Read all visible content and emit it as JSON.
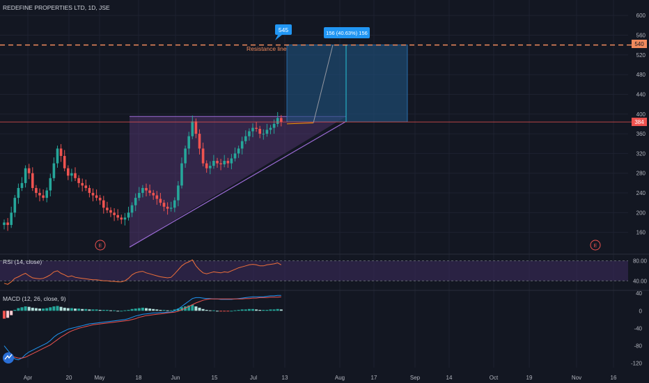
{
  "header": {
    "symbol_title": "REDEFINE PROPERTIES LTD, 1D, JSE"
  },
  "colors": {
    "background": "#131722",
    "grid": "#1e2230",
    "up": "#26a69a",
    "down": "#ef5350",
    "axis_text": "#b2b5be",
    "resistance": "#f08a5d",
    "price_line": "#ef5350",
    "triangle_fill": "#5a3a7a",
    "triangle_edge": "#9c6bd6",
    "target_fill": "#1f4f7a",
    "target_edge": "#2d7fc7",
    "callout": "#2196f3",
    "rsi_line": "#f0703a",
    "rsi_band": "#3a2a5a",
    "macd_line": "#2196f3",
    "signal_line": "#ef5350"
  },
  "main_axis": {
    "ticks": [
      "600",
      "560",
      "520",
      "480",
      "440",
      "400",
      "360",
      "320",
      "280",
      "240",
      "200",
      "160"
    ],
    "last_price_label": "384",
    "resistance_label": "540"
  },
  "x_axis": {
    "labels": [
      "Apr",
      "20",
      "May",
      "18",
      "Jun",
      "15",
      "Jul",
      "13",
      "Aug",
      "17",
      "Sep",
      "14",
      "Oct",
      "19",
      "Nov",
      "16"
    ]
  },
  "annotations": {
    "resistance_text": "Resistance line",
    "target_callout": "545",
    "measure_label": "156 (40.63%) 156",
    "earnings_marker": "E"
  },
  "rsi": {
    "title": "RSI (14, close)",
    "ticks": [
      "80.00",
      "40.00"
    ]
  },
  "macd": {
    "title": "MACD (12, 26, close, 9)",
    "ticks": [
      "40",
      "0",
      "-40",
      "-80",
      "-120"
    ]
  },
  "chart_data": [
    {
      "type": "candlestick",
      "title": "REDEFINE PROPERTIES LTD, 1D, JSE",
      "y_ticks": [
        160,
        200,
        240,
        280,
        320,
        360,
        400,
        440,
        480,
        520,
        560,
        600
      ],
      "ylim": [
        120,
        620
      ],
      "x_tick_labels": [
        "Apr",
        "20",
        "May",
        "18",
        "Jun",
        "15",
        "Jul",
        "13",
        "Aug",
        "17",
        "Sep",
        "14",
        "Oct",
        "19",
        "Nov",
        "16"
      ],
      "close": [
        180,
        175,
        200,
        230,
        250,
        260,
        290,
        280,
        250,
        240,
        235,
        230,
        245,
        270,
        300,
        330,
        315,
        290,
        275,
        280,
        270,
        260,
        255,
        250,
        240,
        235,
        230,
        225,
        210,
        205,
        200,
        195,
        190,
        186,
        190,
        200,
        215,
        230,
        240,
        250,
        245,
        240,
        235,
        228,
        220,
        212,
        208,
        210,
        225,
        255,
        300,
        330,
        355,
        385,
        360,
        330,
        300,
        290,
        295,
        305,
        300,
        298,
        305,
        300,
        310,
        320,
        330,
        345,
        355,
        365,
        372,
        370,
        360,
        360,
        368,
        372,
        380,
        392,
        384
      ],
      "last_price": 384,
      "resistance_level": 540,
      "target": 545,
      "measured_move": "156 (40.63%) 156"
    },
    {
      "type": "line",
      "title": "RSI (14, close)",
      "y_ticks": [
        40,
        80
      ],
      "ylim": [
        25,
        92
      ],
      "values": [
        35,
        33,
        38,
        45,
        48,
        52,
        55,
        50,
        46,
        45,
        44,
        45,
        48,
        52,
        58,
        60,
        55,
        52,
        48,
        50,
        47,
        46,
        45,
        44,
        43,
        42,
        42,
        41,
        40,
        40,
        39,
        39,
        38,
        38,
        40,
        45,
        52,
        56,
        58,
        59,
        56,
        54,
        52,
        50,
        48,
        47,
        46,
        47,
        54,
        62,
        70,
        75,
        78,
        82,
        70,
        62,
        56,
        54,
        56,
        58,
        57,
        56,
        58,
        57,
        60,
        63,
        66,
        68,
        70,
        72,
        73,
        72,
        70,
        70,
        72,
        73,
        74,
        76,
        72
      ]
    },
    {
      "type": "bar+line",
      "title": "MACD (12, 26, close, 9)",
      "y_ticks": [
        -120,
        -80,
        -40,
        0,
        40
      ],
      "ylim": [
        -130,
        45
      ],
      "histogram": [
        -18,
        -16,
        -10,
        2,
        6,
        8,
        10,
        9,
        7,
        6,
        5,
        5,
        6,
        8,
        10,
        11,
        9,
        7,
        6,
        6,
        5,
        5,
        4,
        4,
        3,
        3,
        3,
        2,
        2,
        2,
        1,
        1,
        0,
        0,
        1,
        2,
        4,
        5,
        6,
        7,
        6,
        5,
        4,
        3,
        2,
        2,
        1,
        1,
        3,
        5,
        8,
        10,
        12,
        14,
        10,
        7,
        4,
        2,
        1,
        1,
        0,
        -1,
        -1,
        -1,
        0,
        1,
        2,
        3,
        3,
        4,
        4,
        3,
        2,
        2,
        2,
        3,
        3,
        4,
        3
      ],
      "macd": [
        -80,
        -90,
        -100,
        -110,
        -112,
        -108,
        -100,
        -94,
        -90,
        -86,
        -82,
        -78,
        -74,
        -68,
        -60,
        -54,
        -50,
        -46,
        -42,
        -40,
        -38,
        -36,
        -34,
        -32,
        -30,
        -29,
        -28,
        -27,
        -26,
        -25,
        -24,
        -23,
        -22,
        -21,
        -20,
        -18,
        -15,
        -12,
        -10,
        -8,
        -7,
        -6,
        -5,
        -5,
        -4,
        -4,
        -3,
        -3,
        0,
        4,
        10,
        16,
        22,
        28,
        30,
        30,
        29,
        28,
        28,
        27,
        27,
        26,
        26,
        26,
        26,
        27,
        28,
        29,
        30,
        31,
        32,
        32,
        32,
        32,
        33,
        34,
        34,
        35,
        35
      ],
      "signal": [
        -100,
        -102,
        -104,
        -106,
        -108,
        -108,
        -106,
        -102,
        -98,
        -94,
        -90,
        -86,
        -82,
        -78,
        -72,
        -66,
        -60,
        -55,
        -50,
        -46,
        -43,
        -40,
        -38,
        -36,
        -34,
        -32,
        -31,
        -30,
        -29,
        -28,
        -27,
        -26,
        -25,
        -24,
        -23,
        -22,
        -20,
        -18,
        -15,
        -13,
        -11,
        -10,
        -9,
        -8,
        -7,
        -6,
        -5,
        -4,
        -3,
        -1,
        2,
        6,
        10,
        14,
        18,
        21,
        24,
        26,
        27,
        27,
        27,
        27,
        27,
        27,
        27,
        27,
        27,
        27,
        28,
        28,
        29,
        29,
        30,
        30,
        30,
        31,
        31,
        31,
        32
      ]
    }
  ]
}
